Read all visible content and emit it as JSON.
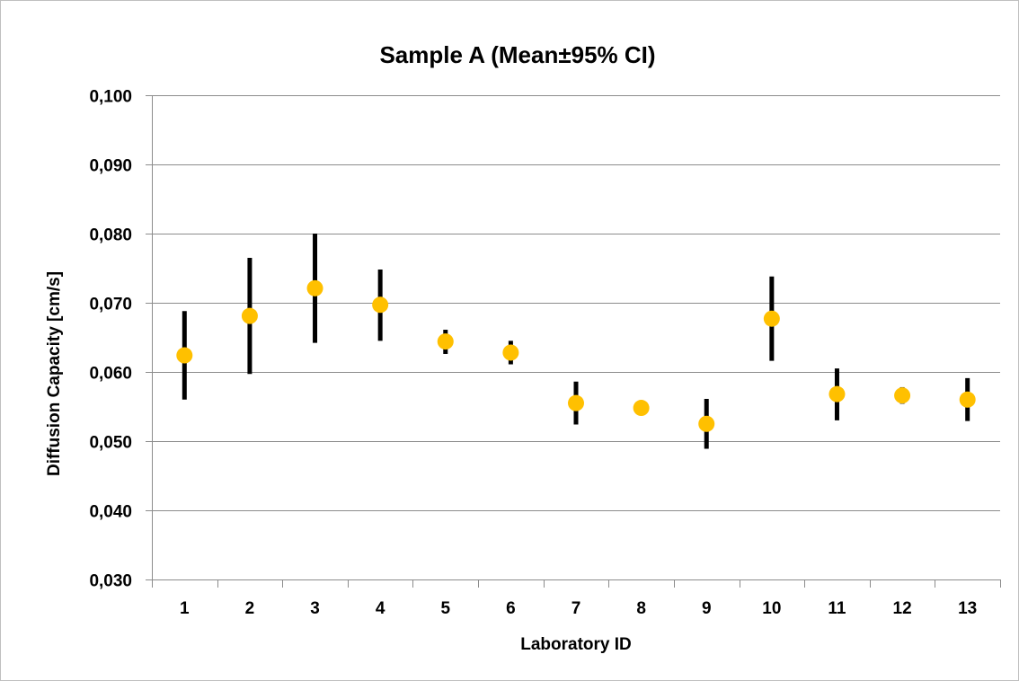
{
  "chart_data": {
    "type": "scatter",
    "title": "Sample A (Mean±95% CI)",
    "xlabel": "Laboratory ID",
    "ylabel": "Diffusion Capacity [cm/s]",
    "ylim": [
      0.03,
      0.1
    ],
    "yticks": [
      "0,030",
      "0,040",
      "0,050",
      "0,060",
      "0,070",
      "0,080",
      "0,090",
      "0,100"
    ],
    "ytick_values": [
      0.03,
      0.04,
      0.05,
      0.06,
      0.07,
      0.08,
      0.09,
      0.1
    ],
    "categories": [
      "1",
      "2",
      "3",
      "4",
      "5",
      "6",
      "7",
      "8",
      "9",
      "10",
      "11",
      "12",
      "13"
    ],
    "grid": true,
    "legend": "none",
    "marker_color": "#ffc000",
    "errorbar_color": "#000000",
    "series": [
      {
        "mean": [
          0.0624,
          0.0681,
          0.0721,
          0.0697,
          0.0644,
          0.0628,
          0.0555,
          0.0548,
          0.0525,
          0.0677,
          0.0568,
          0.0566,
          0.056
        ],
        "lower": [
          0.056,
          0.0597,
          0.0642,
          0.0645,
          0.0626,
          0.0611,
          0.0524,
          0.0548,
          0.0489,
          0.0616,
          0.053,
          0.0554,
          0.0529
        ],
        "upper": [
          0.0688,
          0.0765,
          0.08,
          0.0748,
          0.0661,
          0.0645,
          0.0586,
          0.0548,
          0.0561,
          0.0738,
          0.0605,
          0.0578,
          0.0591
        ]
      }
    ]
  }
}
